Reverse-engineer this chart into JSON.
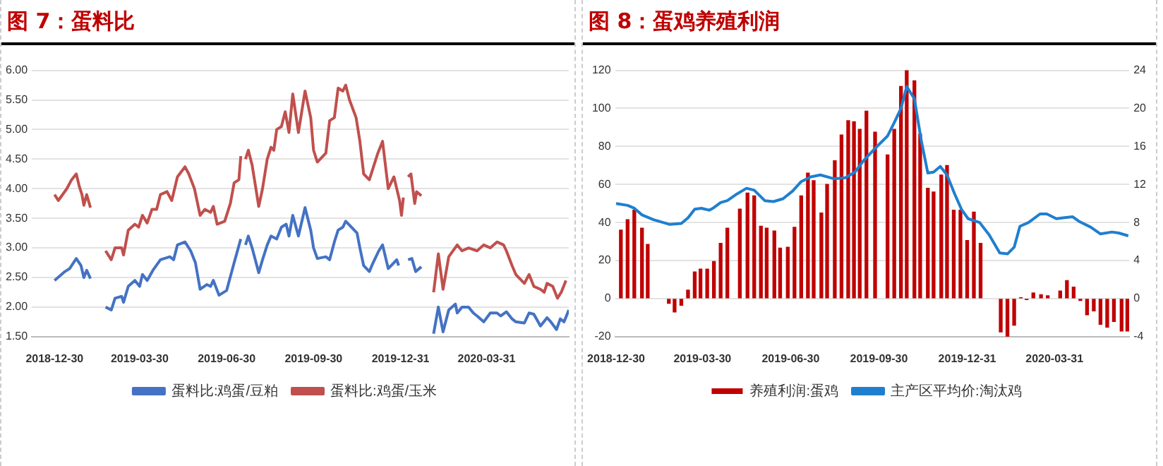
{
  "chart_data": [
    {
      "type": "line",
      "title": "图 7：蛋料比",
      "grid": "y",
      "legend": "bottom",
      "xlim": [
        "2018-12-06",
        "2020-06-26"
      ],
      "xticks": [
        "2018-12-30",
        "2019-03-30",
        "2019-06-30",
        "2019-09-30",
        "2019-12-31",
        "2020-03-31"
      ],
      "ylim": [
        1.5,
        6
      ],
      "yticks": [
        {
          "value": 1.5,
          "label": "1.50"
        },
        {
          "value": 2,
          "label": "2.00"
        },
        {
          "value": 2.5,
          "label": "2.50"
        },
        {
          "value": 3,
          "label": "3.00"
        },
        {
          "value": 3.5,
          "label": "3.50"
        },
        {
          "value": 4,
          "label": "4.00"
        },
        {
          "value": 4.5,
          "label": "4.50"
        },
        {
          "value": 5,
          "label": "5.00"
        },
        {
          "value": 5.5,
          "label": "5.50"
        },
        {
          "value": 6,
          "label": "6.00"
        }
      ],
      "series": [
        {
          "name": "蛋料比:鸡蛋/豆粕",
          "color": "#4472c4",
          "x": [
            "2018-12-30",
            "2019-01-10",
            "2019-01-15",
            "2019-01-22",
            "2019-01-27",
            "2019-01-30",
            "2019-02-02",
            "2019-02-06",
            "2019-02-15",
            "2019-02-22",
            "2019-02-28",
            "2019-03-04",
            "2019-03-11",
            "2019-03-13",
            "2019-03-18",
            "2019-03-25",
            "2019-03-30",
            "2019-04-02",
            "2019-04-07",
            "2019-04-13",
            "2019-04-21",
            "2019-05-01",
            "2019-05-05",
            "2019-05-09",
            "2019-05-17",
            "2019-05-23",
            "2019-05-28",
            "2019-06-02",
            "2019-06-09",
            "2019-06-13",
            "2019-06-16",
            "2019-06-22",
            "2019-06-30",
            "2019-07-08",
            "2019-07-15",
            "2019-07-17",
            "2019-07-20",
            "2019-07-23",
            "2019-07-27",
            "2019-08-03",
            "2019-08-07",
            "2019-08-12",
            "2019-08-16",
            "2019-08-22",
            "2019-08-27",
            "2019-09-01",
            "2019-09-04",
            "2019-09-08",
            "2019-09-14",
            "2019-09-21",
            "2019-09-27",
            "2019-09-30",
            "2019-10-04",
            "2019-10-13",
            "2019-10-17",
            "2019-10-22",
            "2019-10-26",
            "2019-10-31",
            "2019-11-03",
            "2019-11-09",
            "2019-11-15",
            "2019-11-18",
            "2019-11-22",
            "2019-11-28",
            "2019-12-02",
            "2019-12-08",
            "2019-12-12",
            "2019-12-18",
            "2019-12-24",
            "2019-12-27",
            "2019-12-29",
            "2020-01-05",
            "2020-01-08",
            "2020-01-12",
            "2020-01-16",
            "2020-01-22",
            "2020-01-28",
            "2020-02-04",
            "2020-02-09",
            "2020-02-14",
            "2020-02-20",
            "2020-02-27",
            "2020-02-29",
            "2020-03-05",
            "2020-03-12",
            "2020-03-17",
            "2020-03-21",
            "2020-03-28",
            "2020-04-04",
            "2020-04-11",
            "2020-04-15",
            "2020-04-21",
            "2020-04-27",
            "2020-05-01",
            "2020-05-10",
            "2020-05-15",
            "2020-05-20",
            "2020-05-27",
            "2020-06-03",
            "2020-06-07",
            "2020-06-13",
            "2020-06-17",
            "2020-06-21",
            "2020-06-26"
          ],
          "values": [
            2.45,
            2.6,
            2.65,
            2.82,
            2.7,
            2.5,
            2.62,
            2.48,
            null,
            2.0,
            1.95,
            2.15,
            2.18,
            2.08,
            2.35,
            2.45,
            2.35,
            2.55,
            2.45,
            2.62,
            2.8,
            2.85,
            2.8,
            3.05,
            3.1,
            2.95,
            2.75,
            2.3,
            2.38,
            2.35,
            2.45,
            2.2,
            2.28,
            2.75,
            3.15,
            null,
            3.05,
            3.2,
            3.0,
            2.58,
            2.8,
            3.05,
            3.2,
            3.15,
            3.35,
            3.4,
            3.2,
            3.55,
            3.2,
            3.68,
            3.3,
            3.0,
            2.82,
            2.85,
            2.8,
            3.1,
            3.3,
            3.35,
            3.45,
            3.35,
            3.25,
            3.0,
            2.7,
            2.6,
            2.75,
            2.95,
            3.05,
            2.65,
            2.75,
            2.8,
            2.7,
            null,
            2.8,
            2.82,
            2.6,
            2.68,
            null,
            1.55,
            2.0,
            1.58,
            1.95,
            2.05,
            1.9,
            2.0,
            2.0,
            1.9,
            1.85,
            1.75,
            1.9,
            1.9,
            1.85,
            1.92,
            1.8,
            1.75,
            1.73,
            1.9,
            1.88,
            1.68,
            1.82,
            1.75,
            1.62,
            1.8,
            1.75,
            1.95
          ]
        },
        {
          "name": "蛋料比:鸡蛋/玉米",
          "color": "#c0504d",
          "x": [
            "2018-12-30",
            "2019-01-03",
            "2019-01-12",
            "2019-01-17",
            "2019-01-22",
            "2019-01-25",
            "2019-01-28",
            "2019-01-30",
            "2019-02-02",
            "2019-02-06",
            "2019-02-15",
            "2019-02-22",
            "2019-02-28",
            "2019-03-04",
            "2019-03-11",
            "2019-03-13",
            "2019-03-18",
            "2019-03-25",
            "2019-03-29",
            "2019-04-02",
            "2019-04-07",
            "2019-04-12",
            "2019-04-17",
            "2019-04-21",
            "2019-04-28",
            "2019-05-03",
            "2019-05-09",
            "2019-05-17",
            "2019-05-21",
            "2019-05-27",
            "2019-06-02",
            "2019-06-07",
            "2019-06-13",
            "2019-06-16",
            "2019-06-20",
            "2019-06-28",
            "2019-07-04",
            "2019-07-08",
            "2019-07-13",
            "2019-07-15",
            "2019-07-17",
            "2019-07-20",
            "2019-07-23",
            "2019-07-27",
            "2019-08-03",
            "2019-08-07",
            "2019-08-12",
            "2019-08-16",
            "2019-08-19",
            "2019-08-22",
            "2019-08-27",
            "2019-08-31",
            "2019-09-04",
            "2019-09-08",
            "2019-09-14",
            "2019-09-21",
            "2019-09-27",
            "2019-09-30",
            "2019-10-04",
            "2019-10-13",
            "2019-10-17",
            "2019-10-22",
            "2019-10-26",
            "2019-10-31",
            "2019-11-03",
            "2019-11-07",
            "2019-11-14",
            "2019-11-18",
            "2019-11-22",
            "2019-11-28",
            "2019-12-02",
            "2019-12-07",
            "2019-12-12",
            "2019-12-18",
            "2019-12-24",
            "2019-12-30",
            "2020-01-01",
            "2020-01-03",
            "2020-01-05",
            "2020-01-08",
            "2020-01-11",
            "2020-01-15",
            "2020-01-17",
            "2020-01-22",
            "2020-01-28",
            "2020-02-04",
            "2020-02-09",
            "2020-02-14",
            "2020-02-20",
            "2020-02-29",
            "2020-03-05",
            "2020-03-12",
            "2020-03-21",
            "2020-03-28",
            "2020-04-04",
            "2020-04-11",
            "2020-04-18",
            "2020-04-21",
            "2020-04-27",
            "2020-05-01",
            "2020-05-10",
            "2020-05-15",
            "2020-05-20",
            "2020-05-27",
            "2020-05-31",
            "2020-06-03",
            "2020-06-09",
            "2020-06-14",
            "2020-06-18",
            "2020-06-23"
          ],
          "values": [
            3.9,
            3.8,
            4.0,
            4.15,
            4.25,
            4.05,
            3.9,
            3.72,
            3.9,
            3.68,
            null,
            2.95,
            2.8,
            3.0,
            3.0,
            2.88,
            3.3,
            3.4,
            3.35,
            3.55,
            3.42,
            3.65,
            3.65,
            3.9,
            3.95,
            3.8,
            4.2,
            4.37,
            4.25,
            4.0,
            3.55,
            3.65,
            3.6,
            3.7,
            3.4,
            3.45,
            3.75,
            4.1,
            4.15,
            4.55,
            null,
            4.5,
            4.65,
            4.4,
            3.7,
            4.0,
            4.5,
            4.7,
            4.65,
            5.0,
            5.05,
            5.3,
            4.95,
            5.6,
            4.95,
            5.65,
            5.2,
            4.65,
            4.45,
            4.6,
            5.15,
            5.2,
            5.7,
            5.65,
            5.75,
            5.5,
            5.2,
            4.8,
            4.25,
            4.15,
            4.35,
            4.6,
            4.8,
            4.0,
            4.2,
            3.8,
            3.55,
            3.85,
            null,
            4.2,
            4.25,
            3.75,
            3.95,
            3.88,
            null,
            2.25,
            2.9,
            2.3,
            2.85,
            3.05,
            2.95,
            3.0,
            2.95,
            3.05,
            3.0,
            3.1,
            3.05,
            2.95,
            2.7,
            2.55,
            2.4,
            2.55,
            2.35,
            2.3,
            2.25,
            2.4,
            2.35,
            2.15,
            2.25,
            2.45
          ]
        }
      ]
    },
    {
      "type": "bar",
      "title": "图 8：蛋鸡养殖利润",
      "grid": "y",
      "legend": "bottom",
      "xlim": [
        "2018-12-29",
        "2020-06-17"
      ],
      "xticks": [
        "2018-12-30",
        "2019-03-30",
        "2019-06-30",
        "2019-09-30",
        "2019-12-31",
        "2020-03-31"
      ],
      "ylim": [
        -20,
        120
      ],
      "yticks": [
        -20,
        0,
        20,
        40,
        60,
        80,
        100,
        120
      ],
      "y2lim": [
        -4,
        24
      ],
      "y2ticks": [
        -4,
        0,
        4,
        8,
        12,
        16,
        20,
        24
      ],
      "series": [
        {
          "name": "养殖利润:蛋鸡",
          "type": "bar",
          "color": "#c00000",
          "x": [
            "2019-01-04",
            "2019-01-11",
            "2019-01-18",
            "2019-01-26",
            "2019-02-01",
            "2019-02-23",
            "2019-03-01",
            "2019-03-08",
            "2019-03-15",
            "2019-03-22",
            "2019-03-28",
            "2019-04-04",
            "2019-04-11",
            "2019-04-18",
            "2019-04-25",
            "2019-05-08",
            "2019-05-16",
            "2019-05-23",
            "2019-05-30",
            "2019-06-05",
            "2019-06-13",
            "2019-06-19",
            "2019-06-27",
            "2019-07-04",
            "2019-07-11",
            "2019-07-18",
            "2019-07-24",
            "2019-08-01",
            "2019-08-07",
            "2019-08-15",
            "2019-08-22",
            "2019-08-29",
            "2019-09-04",
            "2019-09-10",
            "2019-09-17",
            "2019-09-26",
            "2019-10-09",
            "2019-10-16",
            "2019-10-23",
            "2019-10-29",
            "2019-11-06",
            "2019-11-12",
            "2019-11-20",
            "2019-11-26",
            "2019-12-04",
            "2019-12-10",
            "2019-12-17",
            "2019-12-24",
            "2019-12-31",
            "2020-01-07",
            "2020-01-14",
            "2020-02-04",
            "2020-02-11",
            "2020-02-18",
            "2020-02-25",
            "2020-03-02",
            "2020-03-09",
            "2020-03-17",
            "2020-03-24",
            "2020-04-06",
            "2020-04-13",
            "2020-04-20",
            "2020-04-27",
            "2020-05-04",
            "2020-05-11",
            "2020-05-18",
            "2020-05-25",
            "2020-06-01",
            "2020-06-09",
            "2020-06-15"
          ],
          "values": [
            36,
            41.5,
            46.5,
            37,
            28.5,
            -2.5,
            -7,
            -3.5,
            4.5,
            14,
            15.5,
            15.5,
            19.5,
            29,
            37,
            47,
            55.5,
            54,
            38,
            37,
            35.5,
            26.5,
            27,
            37.5,
            54,
            66,
            62,
            45,
            60,
            72.5,
            86,
            93.5,
            93,
            89,
            98.5,
            87.5,
            75.5,
            89,
            111.5,
            120,
            114.5,
            86.5,
            58,
            56,
            65,
            70,
            46.5,
            46.5,
            30.5,
            45.5,
            29,
            -17.5,
            -20,
            -14,
            0.5,
            -0.5,
            3,
            2,
            1.5,
            4,
            9.5,
            6,
            -1,
            -8.5,
            -6.5,
            -13.5,
            -15,
            -12,
            -17,
            -17
          ]
        },
        {
          "name": "主产区平均价:淘汰鸡",
          "type": "line",
          "axis": "y2",
          "color": "#1f7fcf",
          "x": [
            "2018-12-30",
            "2019-01-11",
            "2019-01-18",
            "2019-01-26",
            "2019-02-07",
            "2019-02-24",
            "2019-03-08",
            "2019-03-15",
            "2019-03-22",
            "2019-03-29",
            "2019-04-06",
            "2019-04-10",
            "2019-04-18",
            "2019-04-25",
            "2019-05-05",
            "2019-05-15",
            "2019-05-23",
            "2019-06-03",
            "2019-06-12",
            "2019-06-22",
            "2019-07-02",
            "2019-07-11",
            "2019-07-21",
            "2019-07-31",
            "2019-08-14",
            "2019-08-26",
            "2019-09-05",
            "2019-09-14",
            "2019-09-27",
            "2019-10-09",
            "2019-10-16",
            "2019-10-23",
            "2019-10-29",
            "2019-11-06",
            "2019-11-13",
            "2019-11-20",
            "2019-11-26",
            "2019-12-03",
            "2019-12-10",
            "2019-12-18",
            "2019-12-25",
            "2020-01-01",
            "2020-01-13",
            "2020-01-23",
            "2020-02-03",
            "2020-02-11",
            "2020-02-18",
            "2020-02-24",
            "2020-03-04",
            "2020-03-16",
            "2020-03-23",
            "2020-04-02",
            "2020-04-09",
            "2020-04-19",
            "2020-04-26",
            "2020-05-08",
            "2020-05-18",
            "2020-05-30",
            "2020-06-06",
            "2020-06-16"
          ],
          "values": [
            10.0,
            9.8,
            9.5,
            8.8,
            8.3,
            7.8,
            7.9,
            8.5,
            9.4,
            9.5,
            9.3,
            9.5,
            10.1,
            10.3,
            11.0,
            11.6,
            11.4,
            10.3,
            10.2,
            10.5,
            11.3,
            12.3,
            12.8,
            13.0,
            12.6,
            12.7,
            13.3,
            14.5,
            15.9,
            17.1,
            18.5,
            20.0,
            22.3,
            21.0,
            16.7,
            13.2,
            13.3,
            13.9,
            13.0,
            11.0,
            9.4,
            8.4,
            8.0,
            6.7,
            4.8,
            4.7,
            5.4,
            7.6,
            8.0,
            8.9,
            8.9,
            8.4,
            8.5,
            8.6,
            8.1,
            7.5,
            6.8,
            7.0,
            6.9,
            6.6
          ]
        }
      ]
    }
  ]
}
